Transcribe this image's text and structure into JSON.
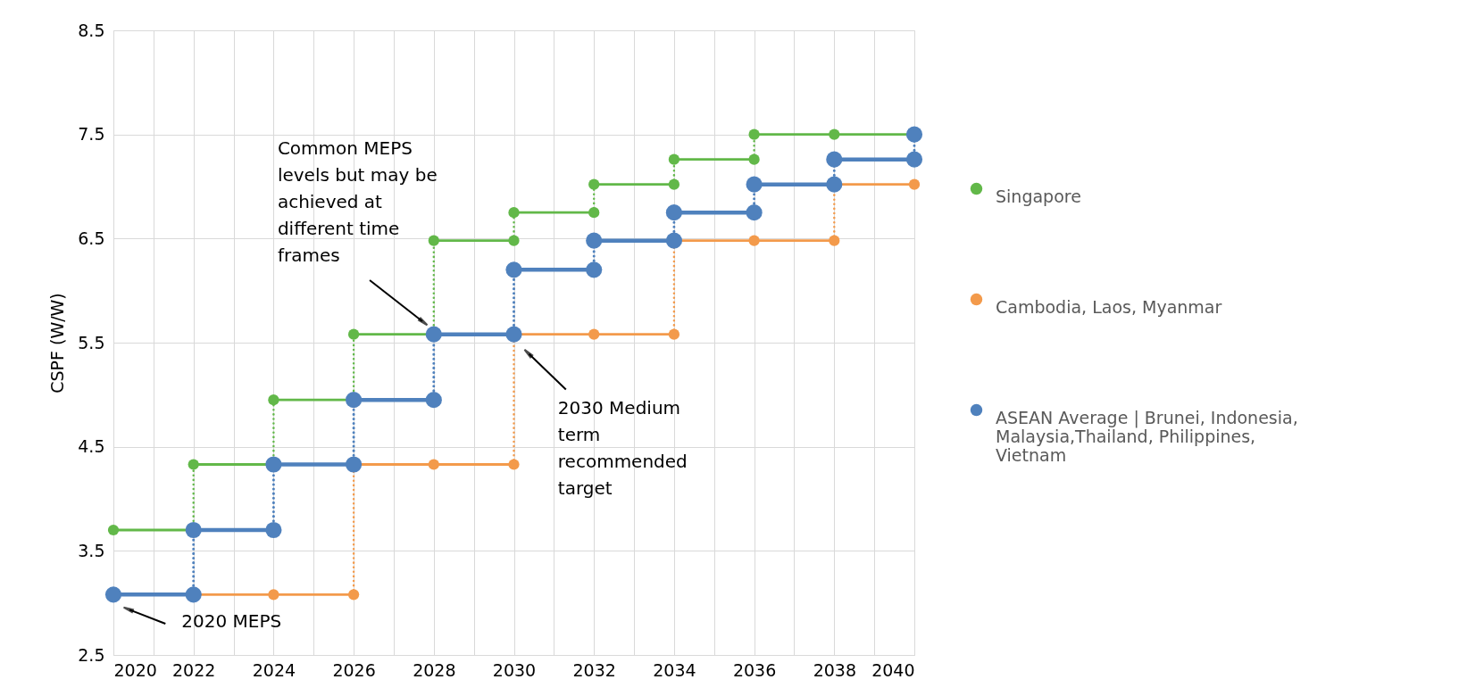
{
  "chart_data": {
    "type": "line",
    "ylabel": "CSPF (W/W)",
    "series": [
      {
        "name": "Singapore",
        "color": "#62b849",
        "x": [
          2020,
          2022,
          2022,
          2024,
          2024,
          2026,
          2026,
          2028,
          2028,
          2030,
          2030,
          2032,
          2032,
          2034,
          2034,
          2036,
          2036,
          2038,
          2040
        ],
        "values": [
          3.7,
          3.7,
          4.33,
          4.33,
          4.95,
          4.95,
          5.58,
          5.58,
          6.48,
          6.48,
          6.75,
          6.75,
          7.02,
          7.02,
          7.26,
          7.26,
          7.5,
          7.5,
          7.5
        ]
      },
      {
        "name": "Cambodia, Laos, Myanmar",
        "color": "#f39a4b",
        "x": [
          2022,
          2024,
          2026,
          2026,
          2028,
          2030,
          2030,
          2032,
          2034,
          2034,
          2036,
          2038,
          2038,
          2040
        ],
        "values": [
          3.08,
          3.08,
          3.08,
          4.33,
          4.33,
          4.33,
          5.58,
          5.58,
          5.58,
          6.48,
          6.48,
          6.48,
          7.02,
          7.02
        ]
      },
      {
        "name": "ASEAN Average | Brunei, Indonesia, Malaysia,Thailand, Philippines, Vietnam",
        "color": "#4f81bd",
        "x": [
          2020,
          2022,
          2022,
          2024,
          2024,
          2026,
          2026,
          2028,
          2028,
          2030,
          2030,
          2032,
          2032,
          2034,
          2034,
          2036,
          2036,
          2038,
          2038,
          2040,
          2040
        ],
        "values": [
          3.08,
          3.08,
          3.7,
          3.7,
          4.33,
          4.33,
          4.95,
          4.95,
          5.58,
          5.58,
          6.2,
          6.2,
          6.48,
          6.48,
          6.75,
          6.75,
          7.02,
          7.02,
          7.26,
          7.26,
          7.5
        ]
      }
    ],
    "xlim": [
      2020,
      2040
    ],
    "ylim": [
      2.5,
      8.5
    ],
    "xticks": [
      2020,
      {
        "value": 2021,
        "label": null
      },
      2022,
      {
        "value": 2023,
        "label": null
      },
      2024,
      {
        "value": 2025,
        "label": null
      },
      2026,
      {
        "value": 2027,
        "label": null
      },
      2028,
      {
        "value": 2029,
        "label": null
      },
      2030,
      {
        "value": 2031,
        "label": null
      },
      2032,
      {
        "value": 2033,
        "label": null
      },
      2034,
      {
        "value": 2035,
        "label": null
      },
      2036,
      {
        "value": 2037,
        "label": null
      },
      2038,
      {
        "value": 2039,
        "label": null
      },
      2040
    ],
    "yticks": [
      2.5,
      3.5,
      4.5,
      5.5,
      6.5,
      7.5,
      8.5
    ],
    "grid": true,
    "legend": "right",
    "marker": "circle",
    "annotations": [
      {
        "text": "Common MEPS levels but may be achieved at different time frames",
        "x": 2027.8,
        "y": 5.68
      },
      "2030 Medium term recommended target",
      "2020 MEPS"
    ]
  }
}
